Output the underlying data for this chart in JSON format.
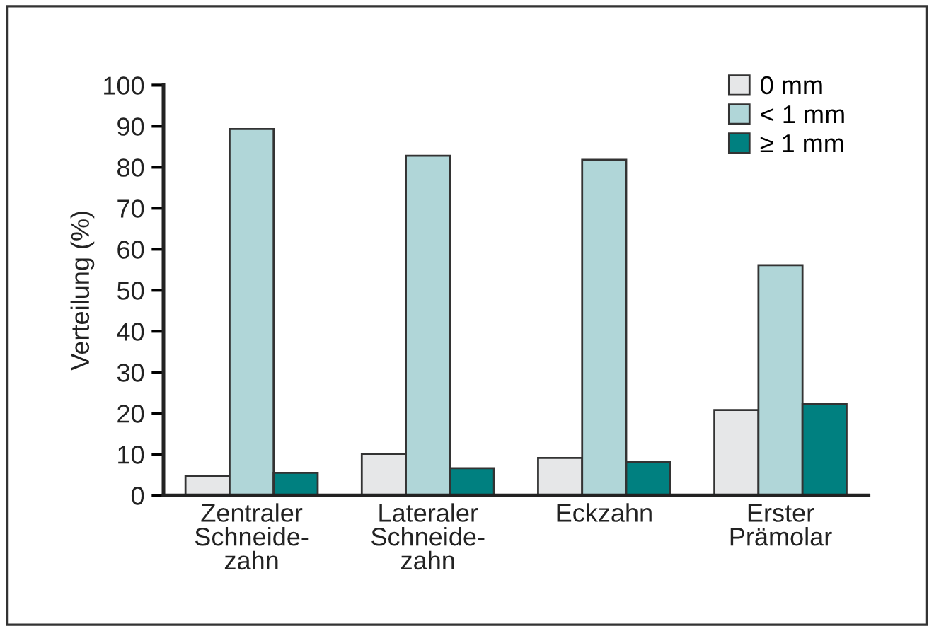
{
  "chart_data": {
    "type": "bar",
    "ylabel": "Verteilung (%)",
    "categories": [
      "Zentraler\nSchneide-\nzahn",
      "Lateraler\nSchneide-\nzahn",
      "Eckzahn",
      "Erster\nPrämolar"
    ],
    "series": [
      {
        "name": "0 mm",
        "color": "#e6e7e8",
        "values": [
          4.7,
          10.1,
          9.1,
          20.8
        ]
      },
      {
        "name": "< 1 mm",
        "color": "#b0d6d8",
        "values": [
          89.3,
          82.8,
          81.8,
          56.1
        ]
      },
      {
        "name": "≥ 1 mm",
        "color": "#008080",
        "values": [
          5.5,
          6.6,
          8.1,
          22.3
        ]
      }
    ],
    "ylim": [
      0,
      100
    ],
    "yticks": [
      0,
      10,
      20,
      30,
      40,
      50,
      60,
      70,
      80,
      90,
      100
    ],
    "grid": false,
    "legend": "top right"
  }
}
